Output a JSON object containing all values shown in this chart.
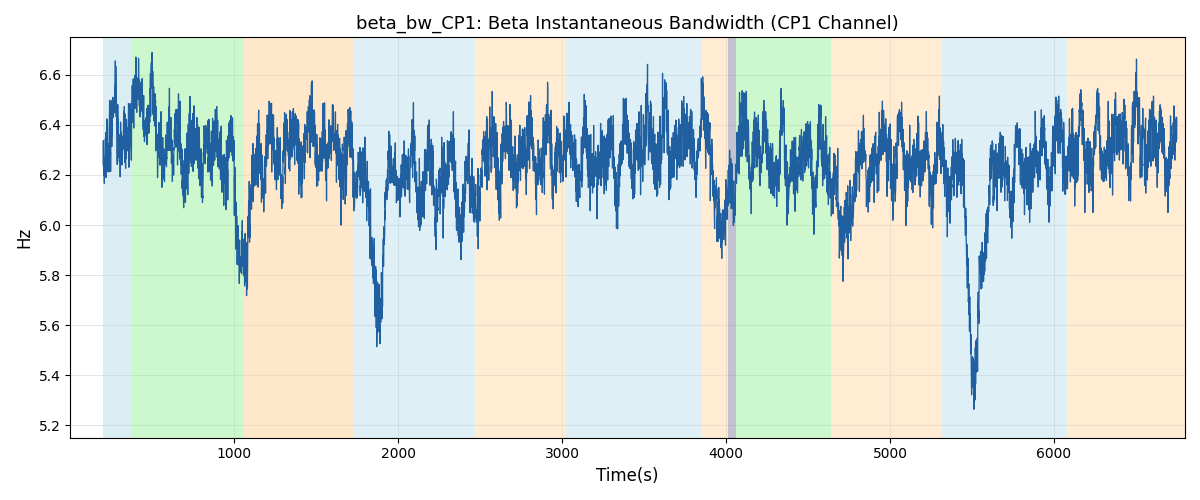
{
  "title": "beta_bw_CP1: Beta Instantaneous Bandwidth (CP1 Channel)",
  "xlabel": "Time(s)",
  "ylabel": "Hz",
  "xlim": [
    0,
    6800
  ],
  "ylim": [
    5.15,
    6.75
  ],
  "yticks": [
    5.2,
    5.4,
    5.6,
    5.8,
    6.0,
    6.2,
    6.4,
    6.6
  ],
  "xticks": [
    1000,
    2000,
    3000,
    4000,
    5000,
    6000
  ],
  "line_color": "#2060a0",
  "line_width": 0.9,
  "bg_regions": [
    {
      "xmin": 200,
      "xmax": 370,
      "color": "#add8e6",
      "alpha": 0.45
    },
    {
      "xmin": 370,
      "xmax": 1060,
      "color": "#90ee90",
      "alpha": 0.45
    },
    {
      "xmin": 1060,
      "xmax": 1730,
      "color": "#ffd59e",
      "alpha": 0.55
    },
    {
      "xmin": 1730,
      "xmax": 2470,
      "color": "#add8e6",
      "alpha": 0.4
    },
    {
      "xmin": 2470,
      "xmax": 3020,
      "color": "#ffd59e",
      "alpha": 0.45
    },
    {
      "xmin": 3020,
      "xmax": 3850,
      "color": "#add8e6",
      "alpha": 0.4
    },
    {
      "xmin": 3850,
      "xmax": 4010,
      "color": "#ffd59e",
      "alpha": 0.45
    },
    {
      "xmin": 4010,
      "xmax": 4060,
      "color": "#9090aa",
      "alpha": 0.55
    },
    {
      "xmin": 4060,
      "xmax": 4640,
      "color": "#90ee90",
      "alpha": 0.45
    },
    {
      "xmin": 4640,
      "xmax": 5310,
      "color": "#ffd59e",
      "alpha": 0.45
    },
    {
      "xmin": 5310,
      "xmax": 6080,
      "color": "#add8e6",
      "alpha": 0.4
    },
    {
      "xmin": 6080,
      "xmax": 6810,
      "color": "#ffd59e",
      "alpha": 0.45
    }
  ],
  "seed": 7
}
